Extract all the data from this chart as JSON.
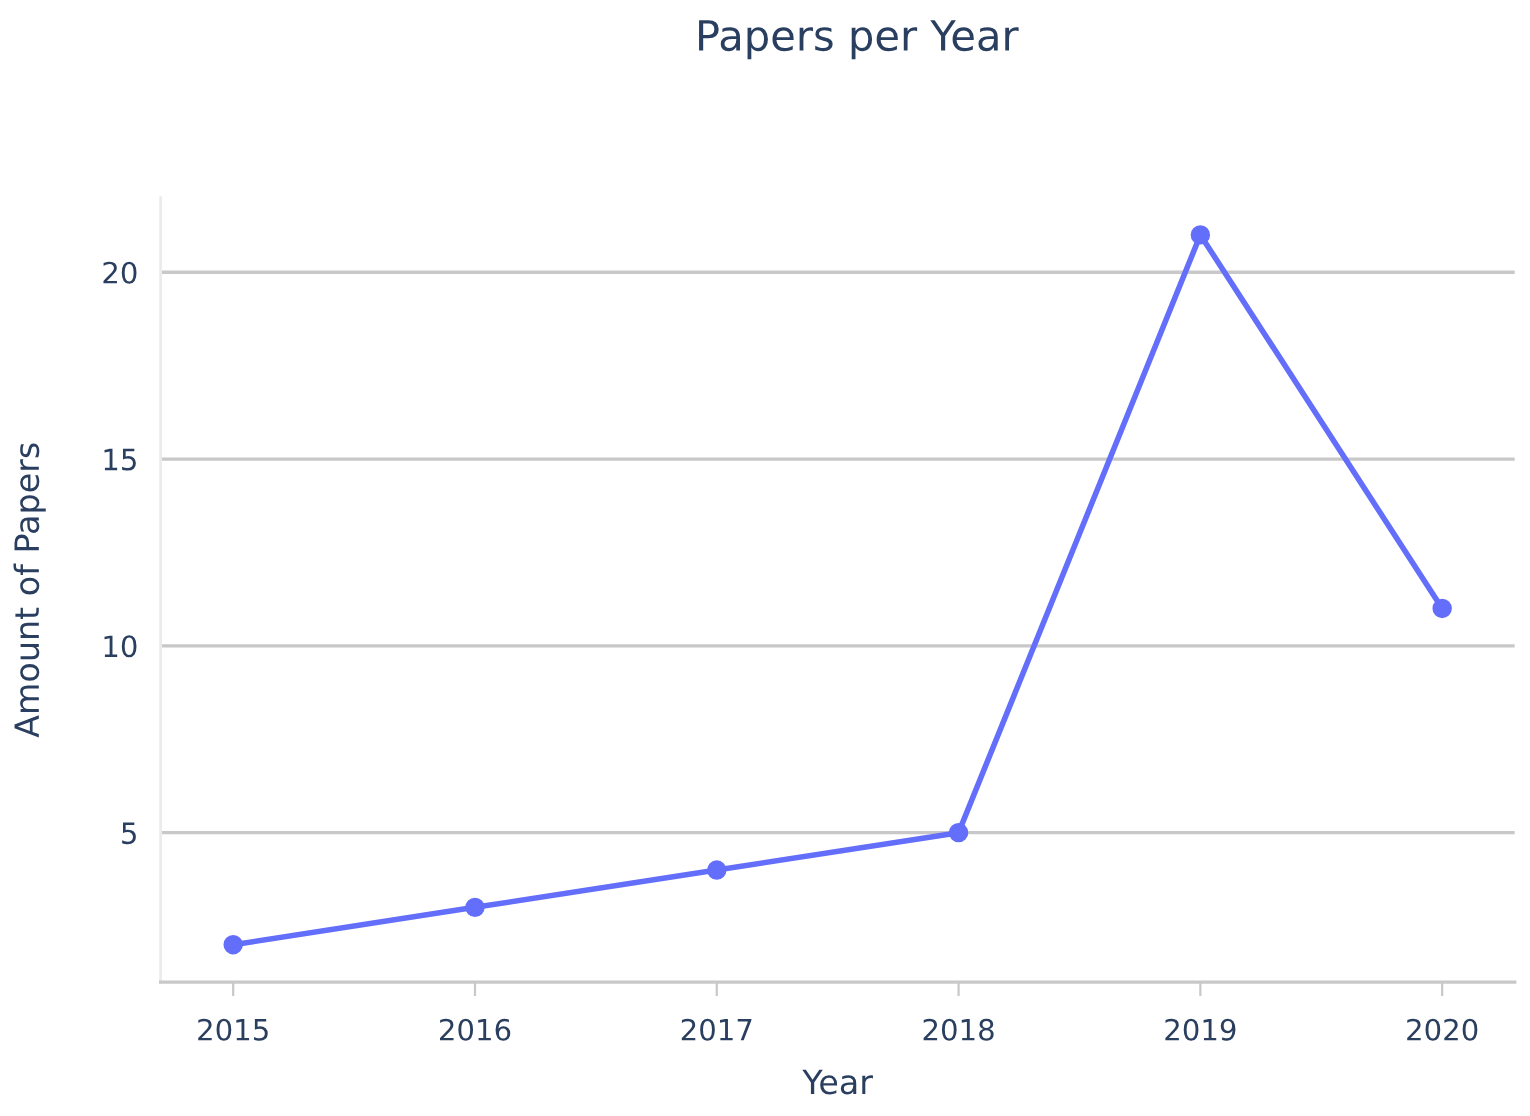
{
  "chart_data": {
    "type": "line",
    "title": "Papers per Year",
    "xlabel": "Year",
    "ylabel": "Amount of Papers",
    "x": [
      2015,
      2016,
      2017,
      2018,
      2019,
      2020
    ],
    "series": [
      {
        "color": "#636efa",
        "values": [
          2,
          3,
          4,
          5,
          21,
          11
        ]
      }
    ],
    "xlim": [
      2014.7,
      2020.3
    ],
    "xticks": [
      2015,
      2016,
      2017,
      2018,
      2019,
      2020
    ],
    "ylim": [
      1,
      22
    ],
    "yticks": [
      5,
      10,
      15,
      20
    ],
    "grid": "y",
    "marker": "circle",
    "line_style": "solid",
    "legend": false
  }
}
